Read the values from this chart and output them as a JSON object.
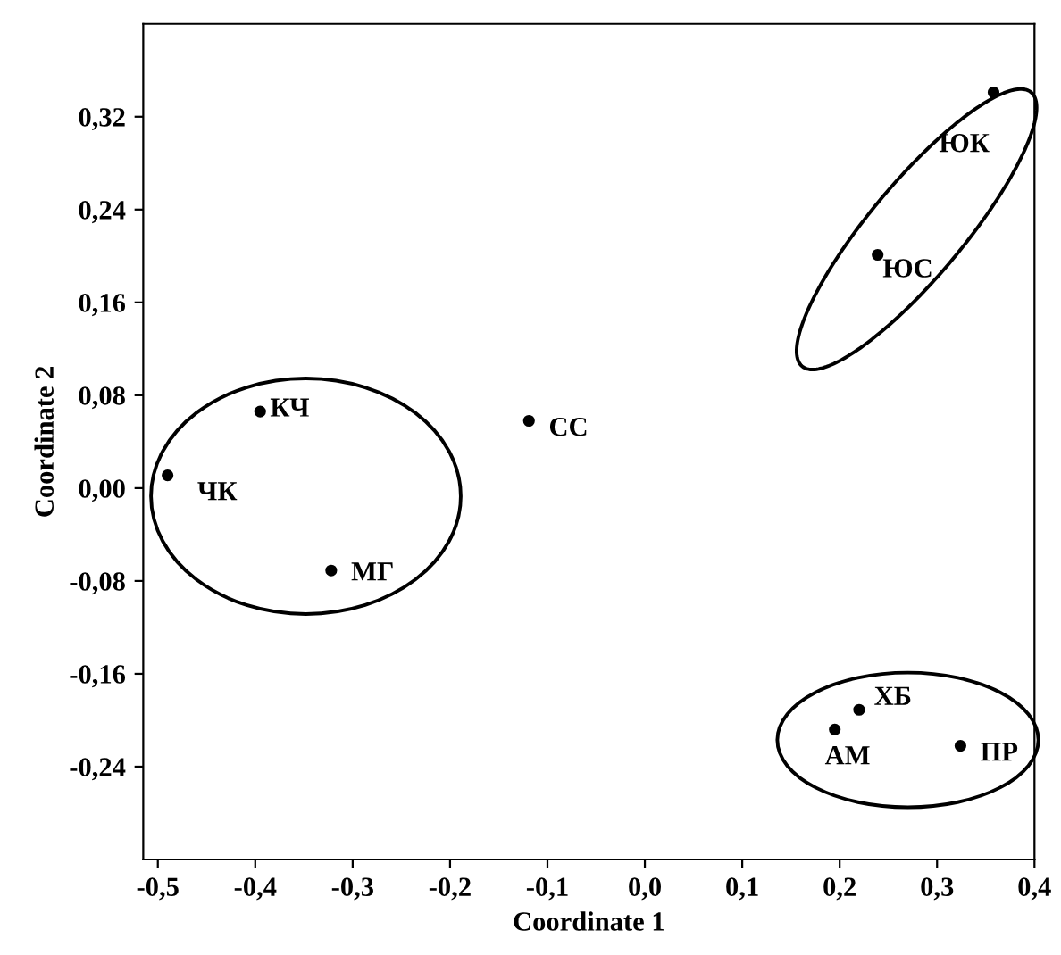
{
  "chart_data": {
    "type": "scatter",
    "xlabel": "Coordinate 1",
    "ylabel": "Coordinate 2",
    "x": [
      0.358,
      0.239,
      -0.395,
      -0.49,
      -0.119,
      -0.322,
      0.22,
      0.195,
      0.324
    ],
    "values": [
      0.341,
      0.201,
      0.066,
      0.011,
      0.058,
      -0.071,
      -0.191,
      -0.208,
      -0.222
    ],
    "color": "#000000",
    "marker": "circle",
    "xlim": [
      -0.515,
      0.4
    ],
    "ylim": [
      -0.32,
      0.4
    ],
    "xticks": [
      {
        "value": -0.5,
        "label": "-0,5"
      },
      {
        "value": -0.4,
        "label": "-0,4"
      },
      {
        "value": -0.3,
        "label": "-0,3"
      },
      {
        "value": -0.2,
        "label": "-0,2"
      },
      {
        "value": -0.1,
        "label": "-0,1"
      },
      {
        "value": 0.0,
        "label": "0,0"
      },
      {
        "value": 0.1,
        "label": "0,1"
      },
      {
        "value": 0.2,
        "label": "0,2"
      },
      {
        "value": 0.3,
        "label": "0,3"
      },
      {
        "value": 0.4,
        "label": "0,4"
      }
    ],
    "yticks": [
      {
        "value": -0.24,
        "label": "-0,24"
      },
      {
        "value": -0.16,
        "label": "-0,16"
      },
      {
        "value": -0.08,
        "label": "-0,08"
      },
      {
        "value": 0.0,
        "label": "0,00"
      },
      {
        "value": 0.08,
        "label": "0,08"
      },
      {
        "value": 0.16,
        "label": "0,16"
      },
      {
        "value": 0.24,
        "label": "0,24"
      },
      {
        "value": 0.32,
        "label": "0,32"
      }
    ],
    "annotations": [
      {
        "text": "ЮК",
        "x": 0.358,
        "y": 0.341
      },
      {
        "text": "ЮС",
        "x": 0.239,
        "y": 0.201
      },
      {
        "text": "КЧ",
        "x": -0.395,
        "y": 0.066
      },
      {
        "text": "ЧК",
        "x": -0.49,
        "y": 0.011
      },
      {
        "text": "СС",
        "x": -0.119,
        "y": 0.058
      },
      {
        "text": "МГ",
        "x": -0.322,
        "y": -0.071
      },
      {
        "text": "ХБ",
        "x": 0.22,
        "y": -0.191
      },
      {
        "text": "АМ",
        "x": 0.195,
        "y": -0.208
      },
      {
        "text": "ПР",
        "x": 0.324,
        "y": -0.222
      }
    ]
  }
}
